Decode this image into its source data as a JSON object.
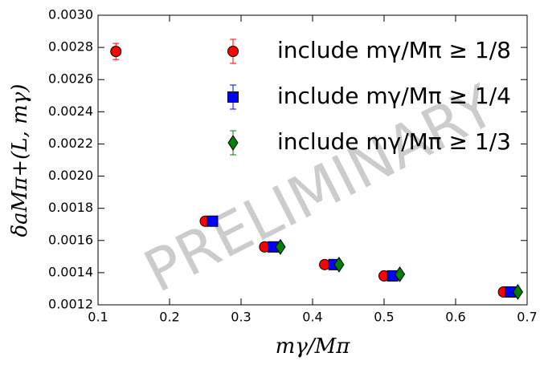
{
  "chart_data": {
    "type": "scatter",
    "xlabel": "mγ/Mπ",
    "ylabel": "δaMπ+(L, mγ)",
    "watermark": "PRELIMINARY",
    "xlim": [
      0.1,
      0.7
    ],
    "xticks": [
      0.1,
      0.2,
      0.3,
      0.4,
      0.5,
      0.6,
      0.7
    ],
    "ylim": [
      0.0012,
      0.003
    ],
    "yticks": [
      {
        "value": 0.0012,
        "label": "0.0012"
      },
      {
        "value": 0.0014,
        "label": "0.0014"
      },
      {
        "value": 0.0016,
        "label": "0.0016"
      },
      {
        "value": 0.0018,
        "label": "0.0018"
      },
      {
        "value": 0.002,
        "label": "0.0020"
      },
      {
        "value": 0.0022,
        "label": "0.0022"
      },
      {
        "value": 0.0024,
        "label": "0.0024"
      },
      {
        "value": 0.0026,
        "label": "0.0026"
      },
      {
        "value": 0.0028,
        "label": "0.0028"
      },
      {
        "value": 0.003,
        "label": "0.0030"
      }
    ],
    "legend": "upper right",
    "series": [
      {
        "name": "include mγ/Mπ ≥ 1/8",
        "color": "#ff0000",
        "marker": "circle",
        "x": [
          0.125,
          0.25,
          0.333,
          0.417,
          0.5,
          0.667
        ],
        "values": [
          0.002775,
          0.00172,
          0.00156,
          0.00145,
          0.00138,
          0.00128
        ],
        "errors": [
          5e-05,
          1e-05,
          1e-05,
          1e-05,
          1e-05,
          1e-05
        ]
      },
      {
        "name": "include mγ/Mπ ≥ 1/4",
        "color": "#0000ff",
        "marker": "square",
        "x": [
          0.26,
          0.345,
          0.43,
          0.512,
          0.677
        ],
        "values": [
          0.00172,
          0.00156,
          0.00145,
          0.00138,
          0.00128
        ],
        "errors": [
          1e-05,
          1e-05,
          1e-05,
          1e-05,
          1e-05
        ]
      },
      {
        "name": "include mγ/Mπ ≥ 1/3",
        "color": "#008000",
        "marker": "diamond",
        "x": [
          0.355,
          0.437,
          0.522,
          0.687
        ],
        "values": [
          0.00156,
          0.00145,
          0.00139,
          0.00128
        ],
        "errors": [
          1e-05,
          1e-05,
          1e-05,
          1e-05
        ]
      }
    ]
  }
}
